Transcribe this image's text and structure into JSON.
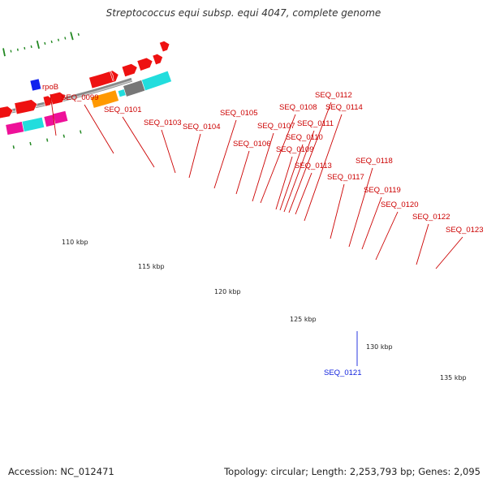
{
  "title": "Streptococcus equi subsp. equi 4047, complete genome",
  "accession": "Accession: NC_012471",
  "summary": "Topology: circular; Length: 2,253,793 bp; Genes: 2,095",
  "colors": {
    "cds": "#ee1111",
    "orange": "#ff9900",
    "gray": "#777777",
    "cyan": "#22dddd",
    "magenta": "#ee1199",
    "lime": "#99ee33",
    "green": "#559933",
    "blue": "#1122ee",
    "backbone": "#999999",
    "tick": "#228822"
  },
  "scale_labels": [
    "110 kbp",
    "115 kbp",
    "120 kbp",
    "125 kbp",
    "130 kbp",
    "135 kbp"
  ],
  "gene_labels": [
    {
      "text": "rpoB",
      "color": "#cc0000"
    },
    {
      "text": "SEQ_0099",
      "color": "#cc0000"
    },
    {
      "text": "SEQ_0101",
      "color": "#cc0000"
    },
    {
      "text": "SEQ_0103",
      "color": "#cc0000"
    },
    {
      "text": "SEQ_0104",
      "color": "#cc0000"
    },
    {
      "text": "SEQ_0105",
      "color": "#cc0000"
    },
    {
      "text": "SEQ_0106",
      "color": "#cc0000"
    },
    {
      "text": "SEQ_0107",
      "color": "#cc0000"
    },
    {
      "text": "SEQ_0108",
      "color": "#cc0000"
    },
    {
      "text": "SEQ_0109",
      "color": "#cc0000"
    },
    {
      "text": "SEQ_0110",
      "color": "#cc0000"
    },
    {
      "text": "SEQ_0111",
      "color": "#cc0000"
    },
    {
      "text": "SEQ_0112",
      "color": "#cc0000"
    },
    {
      "text": "SEQ_0113",
      "color": "#cc0000"
    },
    {
      "text": "SEQ_0114",
      "color": "#cc0000"
    },
    {
      "text": "SEQ_0117",
      "color": "#cc0000"
    },
    {
      "text": "SEQ_0118",
      "color": "#cc0000"
    },
    {
      "text": "SEQ_0119",
      "color": "#cc0000"
    },
    {
      "text": "SEQ_0120",
      "color": "#cc0000"
    },
    {
      "text": "SEQ_0122",
      "color": "#cc0000"
    },
    {
      "text": "SEQ_0123",
      "color": "#cc0000"
    },
    {
      "text": "SEQ_0121",
      "color": "#1122dd"
    }
  ]
}
